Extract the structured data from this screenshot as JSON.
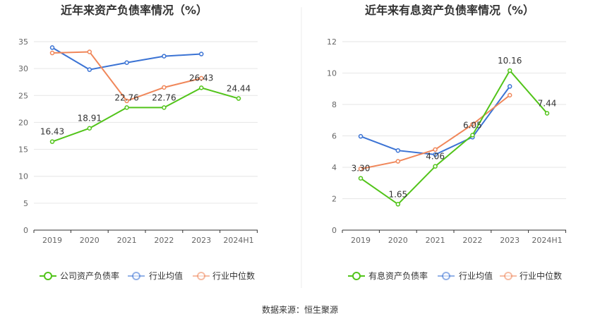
{
  "source": "数据来源：恒生聚源",
  "colors": {
    "company": "#52c41a",
    "avg": "#3b73d4",
    "median": "#f0875a"
  },
  "chart_data": [
    {
      "type": "line",
      "title": "近年来资产负债率情况（%）",
      "categories": [
        "2019",
        "2020",
        "2021",
        "2022",
        "2023",
        "2024H1"
      ],
      "ylim": [
        0,
        35
      ],
      "yticks": [
        0,
        5,
        10,
        15,
        20,
        25,
        30,
        35
      ],
      "grid": true,
      "legend_position": "bottom",
      "series": [
        {
          "name": "公司资产负债率",
          "key": "company",
          "values": [
            16.43,
            18.91,
            22.76,
            22.76,
            26.43,
            24.44
          ],
          "labels": [
            "16.43",
            "18.91",
            "22.76",
            "22.76",
            "26.43",
            "24.44"
          ]
        },
        {
          "name": "行业均值",
          "key": "avg",
          "values": [
            33.9,
            29.8,
            31.1,
            32.3,
            32.7,
            null
          ]
        },
        {
          "name": "行业中位数",
          "key": "median",
          "values": [
            32.9,
            33.1,
            24.0,
            26.5,
            28.2,
            null
          ]
        }
      ]
    },
    {
      "type": "line",
      "title": "近年来有息资产负债率情况（%）",
      "categories": [
        "2019",
        "2020",
        "2021",
        "2022",
        "2023",
        "2024H1"
      ],
      "ylim": [
        0,
        12
      ],
      "yticks": [
        0,
        2,
        4,
        6,
        8,
        10,
        12
      ],
      "grid": true,
      "legend_position": "bottom",
      "series": [
        {
          "name": "有息资产负债率",
          "key": "company",
          "values": [
            3.3,
            1.65,
            4.06,
            6.05,
            10.16,
            7.44
          ],
          "labels": [
            "3.30",
            "1.65",
            "4.06",
            "6.05",
            "10.16",
            "7.44"
          ]
        },
        {
          "name": "行业均值",
          "key": "avg",
          "values": [
            5.97,
            5.07,
            4.81,
            5.92,
            9.15,
            null
          ]
        },
        {
          "name": "行业中位数",
          "key": "median",
          "values": [
            3.9,
            4.38,
            5.13,
            6.73,
            8.59,
            null
          ]
        }
      ]
    }
  ]
}
